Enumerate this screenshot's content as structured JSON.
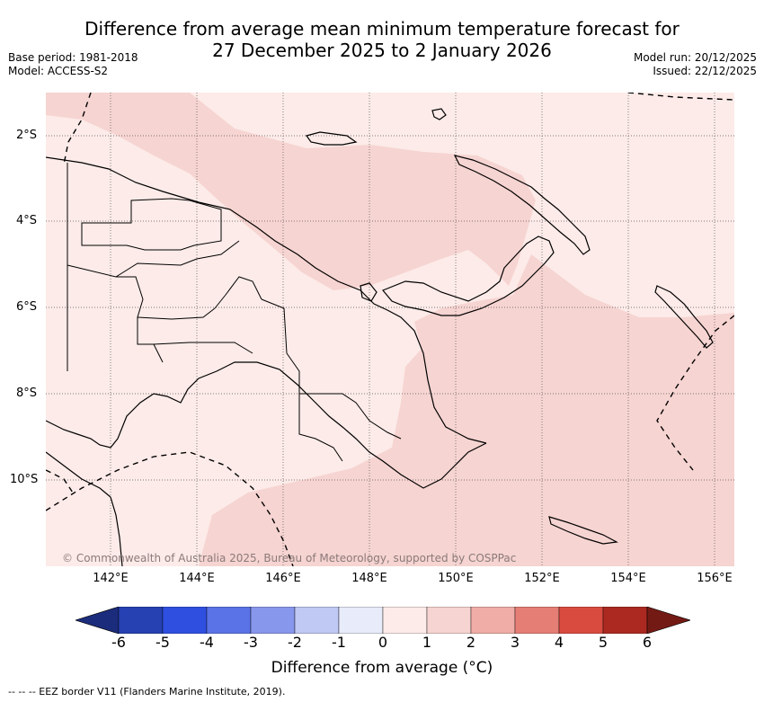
{
  "title": {
    "line1": "Difference from average mean minimum temperature forecast for",
    "line2": "27 December 2025 to 2 January 2026"
  },
  "meta": {
    "base_period": "Base period: 1981-2018",
    "model": "Model: ACCESS-S2",
    "model_run": "Model run: 20/12/2025",
    "issued": "Issued: 22/12/2025"
  },
  "latitude_labels": [
    "2°S",
    "4°S",
    "6°S",
    "8°S",
    "10°S"
  ],
  "longitude_labels": [
    "142°E",
    "144°E",
    "146°E",
    "148°E",
    "150°E",
    "152°E",
    "154°E",
    "156°E"
  ],
  "copyright": "© Commonwealth of Australia 2025, Bureau of Meteorology, supported by COSPPac",
  "colorbar": {
    "ticks": [
      "-6",
      "-5",
      "-4",
      "-3",
      "-2",
      "-1",
      "0",
      "1",
      "2",
      "3",
      "4",
      "5",
      "6"
    ],
    "colors": [
      "#1c2c7c",
      "#2541b2",
      "#2f4fe0",
      "#5a73e6",
      "#8797ec",
      "#c0c8f4",
      "#e8ebfa",
      "#fcebe8",
      "#f6d4d1",
      "#f0aca6",
      "#e57e75",
      "#d94b3f",
      "#ab2921",
      "#741a14"
    ],
    "label": "Difference from average (°C)"
  },
  "legend_colors": {
    "anomaly_0_to_1": "#fcebe8",
    "anomaly_1_to_2": "#f6d4d1"
  },
  "footnote": "--  --  -- EEZ border V11 (Flanders Marine Institute, 2019)."
}
